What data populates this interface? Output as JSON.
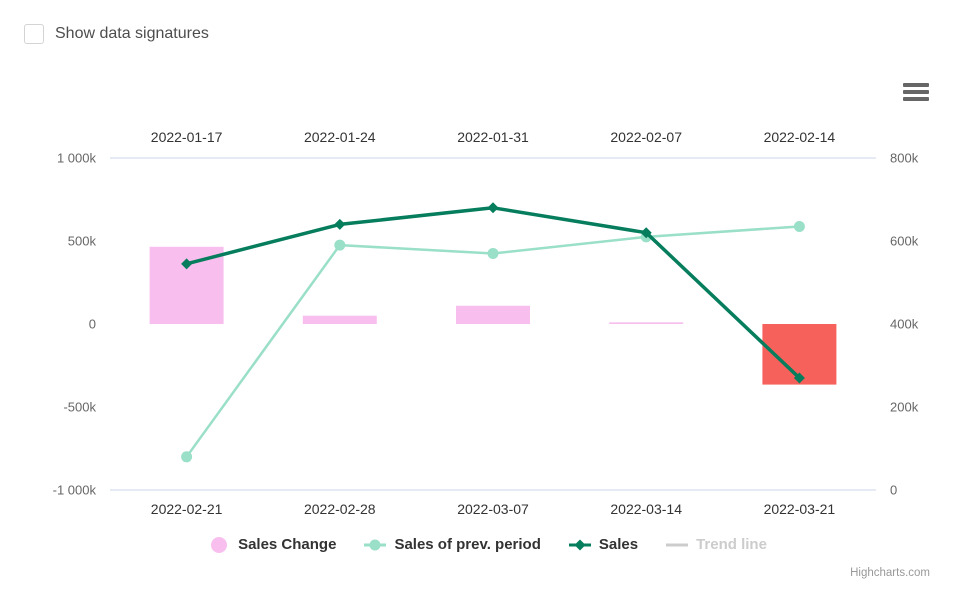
{
  "controls": {
    "checkbox_label": "Show data signatures",
    "checkbox_checked": false
  },
  "credits": "Highcharts.com",
  "palette": {
    "column_positive": "#F8BFEE",
    "column_negative": "#F6615C",
    "prev_line": "#9ADFC7",
    "sales_line": "#067D5C",
    "trend_line": "#CCCCCC",
    "axis_line": "#CCD6EB",
    "number_label": "#666666",
    "date_label": "#333333"
  },
  "chart_data": {
    "type": "combo-column-line-dual-axis",
    "x_axis_top": {
      "position": "top",
      "categories": [
        "2022-01-17",
        "2022-01-24",
        "2022-01-31",
        "2022-02-07",
        "2022-02-14"
      ]
    },
    "x_axis_bottom": {
      "position": "bottom",
      "categories": [
        "2022-02-21",
        "2022-02-28",
        "2022-03-07",
        "2022-03-14",
        "2022-03-21"
      ]
    },
    "y_axis_left": {
      "min": -1000000,
      "max": 1000000,
      "tick_values": [
        1000000,
        500000,
        0,
        -500000,
        -1000000
      ],
      "tick_labels": [
        "1 000k",
        "500k",
        "0",
        "-500k",
        "-1 000k"
      ]
    },
    "y_axis_right": {
      "min": 0,
      "max": 800000,
      "tick_values": [
        800000,
        600000,
        400000,
        200000,
        0
      ],
      "tick_labels": [
        "800k",
        "600k",
        "400k",
        "200k",
        "0"
      ]
    },
    "grid": "off",
    "legend_position": "bottom-center",
    "series": [
      {
        "name": "Sales Change",
        "type": "column",
        "axis": "left",
        "color": "#F8BFEE",
        "negative_color": "#F6615C",
        "values": [
          465000,
          50000,
          110000,
          10000,
          -365000
        ]
      },
      {
        "name": "Sales of prev. period",
        "type": "line",
        "axis": "right",
        "color": "#9ADFC7",
        "marker": "circle",
        "values": [
          80000,
          590000,
          570000,
          610000,
          635000
        ]
      },
      {
        "name": "Sales",
        "type": "line",
        "axis": "right",
        "color": "#067D5C",
        "marker": "diamond",
        "values": [
          545000,
          640000,
          680000,
          620000,
          270000
        ]
      },
      {
        "name": "Trend line",
        "type": "line",
        "axis": "right",
        "color": "#CCCCCC",
        "marker": "none",
        "disabled": true,
        "values": []
      }
    ]
  }
}
